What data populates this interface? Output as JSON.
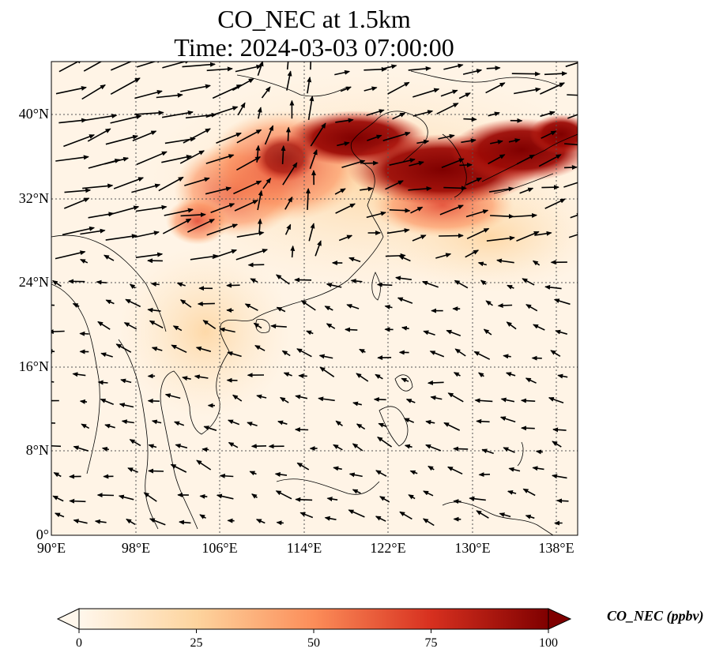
{
  "title_line1": "CO_NEC at 1.5km",
  "title_line2": "Time: 2024-03-03 07:00:00",
  "lat_ticks": [
    "40°N",
    "32°N",
    "24°N",
    "16°N",
    "8°N",
    "0°"
  ],
  "lon_ticks": [
    "90°E",
    "98°E",
    "106°E",
    "114°E",
    "122°E",
    "130°E",
    "138°E"
  ],
  "colorbar": {
    "label": "CO_NEC (ppbv)",
    "ticks": [
      "0",
      "25",
      "50",
      "75",
      "100"
    ],
    "min": 0,
    "max": 100,
    "colors": [
      "#fff7ec",
      "#fdd49e",
      "#fc8d59",
      "#d7301f",
      "#7f0000"
    ]
  },
  "map_extent": {
    "lon_min": 90,
    "lon_max": 140,
    "lat_min": 0,
    "lat_max": 45
  },
  "gridlines": true,
  "wind_vectors": true
}
